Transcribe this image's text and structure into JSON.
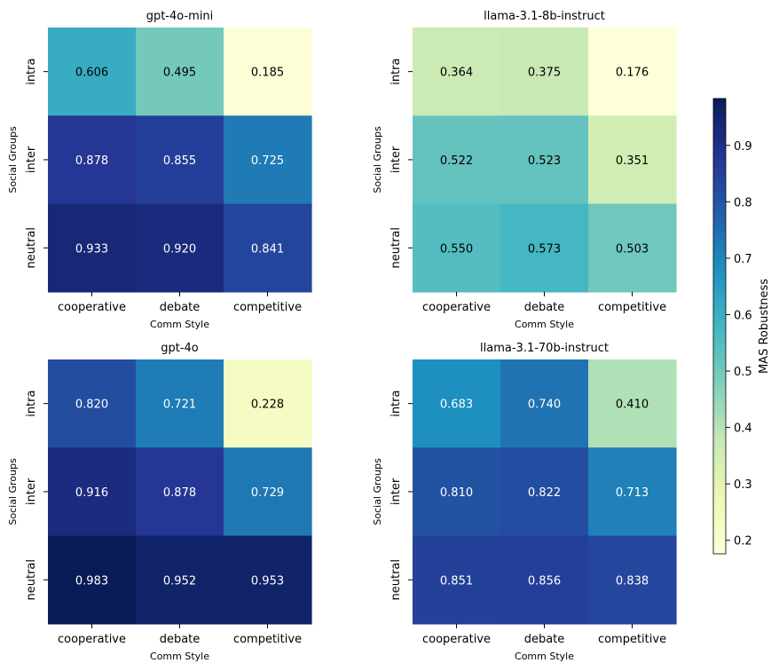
{
  "chart_data": {
    "type": "heatmap",
    "colorbar": {
      "label": "MAS Robustness",
      "range": [
        0.176,
        0.983
      ],
      "ticks": [
        "0.2",
        "0.3",
        "0.4",
        "0.5",
        "0.6",
        "0.7",
        "0.8",
        "0.9"
      ]
    },
    "panels": [
      {
        "title": "gpt-4o-mini",
        "xlabel": "Comm Style",
        "ylabel": "Social Groups",
        "x_categories": [
          "cooperative",
          "debate",
          "competitive"
        ],
        "y_categories": [
          "intra",
          "inter",
          "neutral"
        ],
        "values": [
          [
            0.606,
            0.495,
            0.185
          ],
          [
            0.878,
            0.855,
            0.725
          ],
          [
            0.933,
            0.92,
            0.841
          ]
        ],
        "labels": [
          [
            "0.606",
            "0.495",
            "0.185"
          ],
          [
            "0.878",
            "0.855",
            "0.725"
          ],
          [
            "0.933",
            "0.920",
            "0.841"
          ]
        ]
      },
      {
        "title": "llama-3.1-8b-instruct",
        "xlabel": "Comm Style",
        "ylabel": "Social Groups",
        "x_categories": [
          "cooperative",
          "debate",
          "competitive"
        ],
        "y_categories": [
          "intra",
          "inter",
          "neutral"
        ],
        "values": [
          [
            0.364,
            0.375,
            0.176
          ],
          [
            0.522,
            0.523,
            0.351
          ],
          [
            0.55,
            0.573,
            0.503
          ]
        ],
        "labels": [
          [
            "0.364",
            "0.375",
            "0.176"
          ],
          [
            "0.522",
            "0.523",
            "0.351"
          ],
          [
            "0.550",
            "0.573",
            "0.503"
          ]
        ]
      },
      {
        "title": "gpt-4o",
        "xlabel": "Comm Style",
        "ylabel": "Social Groups",
        "x_categories": [
          "cooperative",
          "debate",
          "competitive"
        ],
        "y_categories": [
          "intra",
          "inter",
          "neutral"
        ],
        "values": [
          [
            0.82,
            0.721,
            0.228
          ],
          [
            0.916,
            0.878,
            0.729
          ],
          [
            0.983,
            0.952,
            0.953
          ]
        ],
        "labels": [
          [
            "0.820",
            "0.721",
            "0.228"
          ],
          [
            "0.916",
            "0.878",
            "0.729"
          ],
          [
            "0.983",
            "0.952",
            "0.953"
          ]
        ]
      },
      {
        "title": "llama-3.1-70b-instruct",
        "xlabel": "Comm Style",
        "ylabel": "Social Groups",
        "x_categories": [
          "cooperative",
          "debate",
          "competitive"
        ],
        "y_categories": [
          "intra",
          "inter",
          "neutral"
        ],
        "values": [
          [
            0.683,
            0.74,
            0.41
          ],
          [
            0.81,
            0.822,
            0.713
          ],
          [
            0.851,
            0.856,
            0.838
          ]
        ],
        "labels": [
          [
            "0.683",
            "0.740",
            "0.410"
          ],
          [
            "0.810",
            "0.822",
            "0.713"
          ],
          [
            "0.851",
            "0.856",
            "0.838"
          ]
        ]
      }
    ]
  }
}
